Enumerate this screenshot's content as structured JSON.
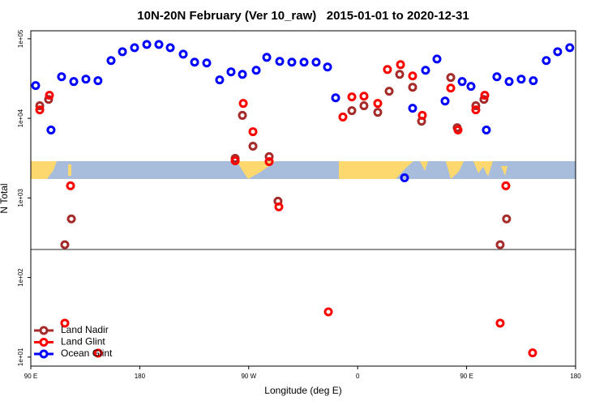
{
  "chart_data": {
    "type": "scatter",
    "title": "10N-20N February (Ver 10_raw)   2015-01-01 to 2020-12-31",
    "x_label": "Longitude (deg E)",
    "y_label": "N Total",
    "xlim": [
      90,
      540
    ],
    "xticks": [
      {
        "value": 90,
        "label": "90 E"
      },
      {
        "value": 180,
        "label": "180"
      },
      {
        "value": 270,
        "label": "90 W"
      },
      {
        "value": 360,
        "label": "0"
      },
      {
        "value": 450,
        "label": "90 E"
      },
      {
        "value": 540,
        "label": "180"
      }
    ],
    "ylim": [
      7.7,
      126000
    ],
    "log_y": true,
    "yticks": [
      {
        "value": 10,
        "label": "1e+01"
      },
      {
        "value": 100,
        "label": "1e+02"
      },
      {
        "value": 1000,
        "label": "1e+03"
      },
      {
        "value": 10000,
        "label": "1e+04"
      },
      {
        "value": 100000,
        "label": "1e+05"
      }
    ],
    "legend": "lower left",
    "series": [
      {
        "name": "Land Nadir",
        "color": "#a52a2a",
        "x": [
          97.4,
          104.7,
          118.1,
          123.5,
          264.8,
          258.8,
          273.5,
          286.9,
          294.2,
          355.2,
          365.2,
          376.6,
          386,
          394.7,
          405.4,
          412.8,
          436.9,
          442.2,
          457.6,
          464.3,
          477.7,
          483
        ],
        "values": [
          14400,
          17300,
          258,
          545,
          10900,
          3140,
          4470,
          3300,
          911,
          12500,
          14400,
          11900,
          21900,
          35700,
          24600,
          9210,
          32600,
          7640,
          14400,
          17300,
          258,
          545
        ]
      },
      {
        "name": "Land Glint",
        "color": "#ff0000",
        "x": [
          97.4,
          105.4,
          118.1,
          122.8,
          145.6,
          265.5,
          258.8,
          273.5,
          286.9,
          294.9,
          335.8,
          347.8,
          355.2,
          365.2,
          376.6,
          384.6,
          395.4,
          405.4,
          413.4,
          436.9,
          442.9,
          457.6,
          465,
          477.7,
          482.4,
          504.5
        ],
        "values": [
          12800,
          19500,
          26.7,
          1420,
          11.2,
          15400,
          2930,
          6800,
          2860,
          773,
          37,
          10400,
          18600,
          19000,
          15400,
          41100,
          47300,
          34100,
          10900,
          24000,
          7130,
          12800,
          19500,
          26.7,
          1420,
          11.3
        ]
      },
      {
        "name": "Ocean Glint",
        "color": "#0000ff",
        "x": [
          94,
          106.7,
          115.4,
          125.5,
          135.5,
          145.5,
          156.3,
          165.7,
          175.7,
          185.8,
          195.8,
          205.2,
          215.9,
          225.3,
          235.3,
          246,
          255.4,
          264.8,
          276.2,
          284.9,
          295.6,
          305.6,
          315.7,
          325.7,
          335.1,
          341.8,
          398.7,
          405.4,
          416.1,
          425.5,
          432.2,
          446.3,
          453.6,
          466.3,
          475,
          485.1,
          495.1,
          505.1,
          515.8,
          525.2,
          535.2
        ],
        "values": [
          25800,
          7130,
          33300,
          29000,
          31100,
          29700,
          53200,
          68800,
          77300,
          84900,
          84900,
          77300,
          64100,
          50800,
          49600,
          30400,
          38400,
          35700,
          40200,
          58400,
          52000,
          50800,
          50800,
          50800,
          44200,
          18100,
          1790,
          13400,
          40200,
          55700,
          16500,
          29000,
          25200,
          7130,
          33300,
          29000,
          31100,
          29700,
          53200,
          68800,
          77300
        ]
      }
    ]
  }
}
